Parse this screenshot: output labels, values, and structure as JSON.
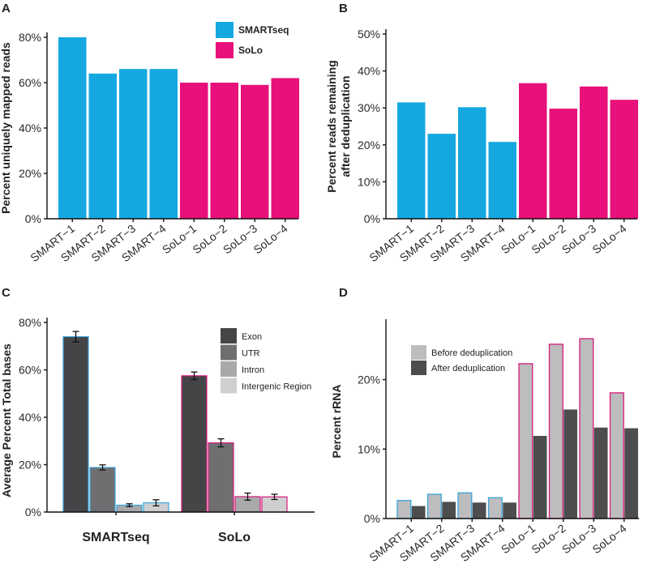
{
  "chart_data": [
    {
      "panel": "A",
      "type": "bar",
      "title": "",
      "xlabel": "",
      "ylabel": "Percent uniquely mapped reads",
      "categories": [
        "SMART−1",
        "SMART−2",
        "SMART−3",
        "SMART−4",
        "SoLo−1",
        "SoLo−2",
        "SoLo−3",
        "SoLo−4"
      ],
      "values": [
        80,
        64,
        66,
        66,
        60,
        60,
        59,
        62
      ],
      "groups": [
        "SMARTseq",
        "SMARTseq",
        "SMARTseq",
        "SMARTseq",
        "SoLo",
        "SoLo",
        "SoLo",
        "SoLo"
      ],
      "ylim": [
        0,
        80
      ],
      "yticks": [
        0,
        20,
        40,
        60,
        80
      ],
      "ytick_labels": [
        "0%",
        "20%",
        "40%",
        "60%",
        "80%"
      ],
      "legend": [
        {
          "label": "SMARTseq",
          "color": "#15a8e0"
        },
        {
          "label": "SoLo",
          "color": "#e8107a"
        }
      ]
    },
    {
      "panel": "B",
      "type": "bar",
      "title": "",
      "xlabel": "",
      "ylabel": [
        "Percent reads remaining",
        "after deduplication"
      ],
      "categories": [
        "SMART−1",
        "SMART−2",
        "SMART−3",
        "SMART−4",
        "SoLo−1",
        "SoLo−2",
        "SoLo−3",
        "SoLo−4"
      ],
      "values": [
        31.5,
        23,
        30.2,
        20.8,
        36.7,
        29.8,
        35.8,
        32.2
      ],
      "groups": [
        "SMARTseq",
        "SMARTseq",
        "SMARTseq",
        "SMARTseq",
        "SoLo",
        "SoLo",
        "SoLo",
        "SoLo"
      ],
      "ylim": [
        0,
        50
      ],
      "yticks": [
        0,
        10,
        20,
        30,
        40,
        50
      ],
      "ytick_labels": [
        "0%",
        "10%",
        "20%",
        "30%",
        "40%",
        "50%"
      ]
    },
    {
      "panel": "C",
      "type": "bar",
      "title": "",
      "xlabel": "",
      "ylabel": "Average Percent Total bases",
      "categories": [
        "SMARTseq",
        "SoLo"
      ],
      "series": [
        {
          "name": "Exon",
          "color": "#454547",
          "values": [
            74,
            57.5
          ],
          "errors": [
            2.2,
            1.6
          ]
        },
        {
          "name": "UTR",
          "color": "#6f6f71",
          "values": [
            18.8,
            29.2
          ],
          "errors": [
            1.1,
            1.7
          ]
        },
        {
          "name": "Intron",
          "color": "#a9a9ab",
          "values": [
            2.9,
            6.5
          ],
          "errors": [
            0.6,
            1.5
          ]
        },
        {
          "name": "Intergenic Region",
          "color": "#cfcfd1",
          "values": [
            3.9,
            6.4
          ],
          "errors": [
            1.3,
            1.1
          ]
        }
      ],
      "outline_colors": [
        "#39a6dd",
        "#d81b7c"
      ],
      "ylim": [
        0,
        80
      ],
      "yticks": [
        0,
        20,
        40,
        60,
        80
      ],
      "ytick_labels": [
        "0%",
        "20%",
        "40%",
        "60%",
        "80%"
      ]
    },
    {
      "panel": "D",
      "type": "bar",
      "title": "",
      "xlabel": "",
      "ylabel": "Percent rRNA",
      "categories": [
        "SMART−1",
        "SMART−2",
        "SMART−3",
        "SMART−4",
        "SoLo−1",
        "SoLo−2",
        "SoLo−3",
        "SoLo−4"
      ],
      "series": [
        {
          "name": "Before deduplication",
          "color": "#bdbcbe",
          "values": [
            2.6,
            3.5,
            3.7,
            3.0,
            22.3,
            25.1,
            25.9,
            18.1
          ]
        },
        {
          "name": "After deduplication",
          "color": "#4d4d4f",
          "values": [
            1.8,
            2.4,
            2.3,
            2.3,
            11.9,
            15.7,
            13.1,
            13.0
          ]
        }
      ],
      "outline_colors": [
        "#39a6dd",
        "#39a6dd",
        "#39a6dd",
        "#39a6dd",
        "#d81b7c",
        "#d81b7c",
        "#d81b7c",
        "#d81b7c"
      ],
      "ylim": [
        0,
        28
      ],
      "yticks": [
        0,
        10,
        20
      ],
      "ytick_labels": [
        "0%",
        "10%",
        "20%"
      ]
    }
  ]
}
